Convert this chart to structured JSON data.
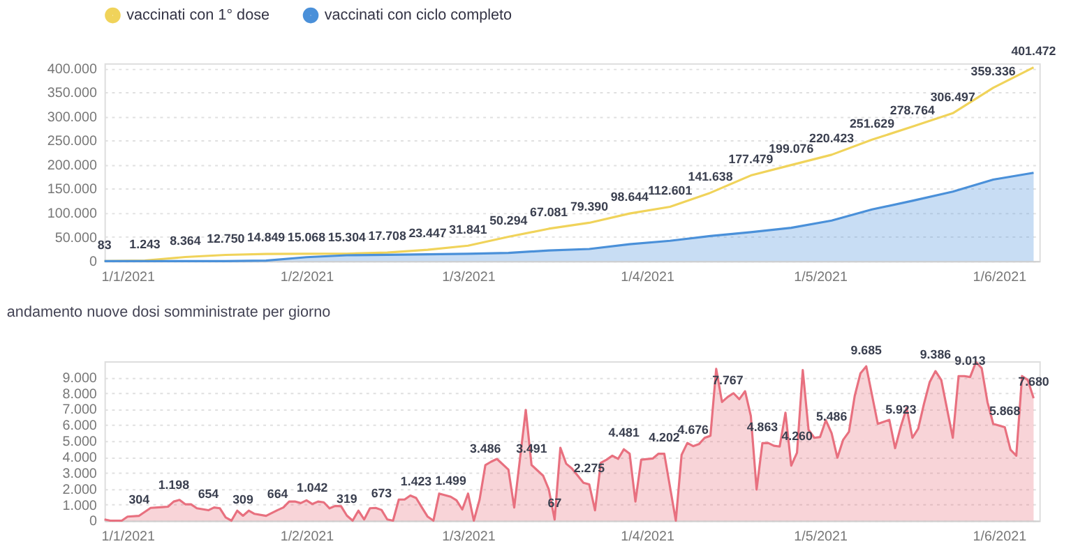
{
  "chart_data": [
    {
      "type": "line",
      "xlim": [
        "2020-12-28",
        "2021-06-08"
      ],
      "ylim": [
        0,
        410000
      ],
      "xticks": [
        {
          "value": "2021-01-01",
          "label": "1/1/2021"
        },
        {
          "value": "2021-02-01",
          "label": "1/2/2021"
        },
        {
          "value": "2021-03-01",
          "label": "1/3/2021"
        },
        {
          "value": "2021-04-01",
          "label": "1/4/2021"
        },
        {
          "value": "2021-05-01",
          "label": "1/5/2021"
        },
        {
          "value": "2021-06-01",
          "label": "1/6/2021"
        }
      ],
      "yticks": [
        0,
        {
          "value": 50000,
          "label": "50.000"
        },
        {
          "value": 100000,
          "label": "100.000"
        },
        {
          "value": 150000,
          "label": "150.000"
        },
        {
          "value": 200000,
          "label": "200.000"
        },
        {
          "value": 250000,
          "label": "250.000"
        },
        {
          "value": 300000,
          "label": "300.000"
        },
        {
          "value": 350000,
          "label": "350.000"
        },
        {
          "value": 400000,
          "label": "400.000"
        }
      ],
      "grid": "y",
      "legend": "top left",
      "marker": "none",
      "line_style": "solid",
      "x": [
        "2020-12-28",
        "2021-01-04",
        "2021-01-11",
        "2021-01-18",
        "2021-01-25",
        "2021-02-01",
        "2021-02-08",
        "2021-02-15",
        "2021-02-22",
        "2021-03-01",
        "2021-03-08",
        "2021-03-15",
        "2021-03-22",
        "2021-03-29",
        "2021-04-05",
        "2021-04-12",
        "2021-04-19",
        "2021-04-26",
        "2021-05-03",
        "2021-05-10",
        "2021-05-17",
        "2021-05-24",
        "2021-05-31",
        "2021-06-07"
      ],
      "series": [
        {
          "name": "vaccinati con 1° dose",
          "color": "#f0d35a",
          "type": "line",
          "values": [
            83,
            1243,
            8364,
            12750,
            14849,
            15068,
            15304,
            17708,
            23447,
            31841,
            50294,
            67081,
            79390,
            98644,
            112601,
            141638,
            177479,
            199076,
            220423,
            251629,
            278764,
            306497,
            359336,
            401472
          ],
          "value_labels": [
            "83",
            "1.243",
            "8.364",
            "12.750",
            "14.849",
            "15.068",
            "15.304",
            "17.708",
            "23.447",
            "31.841",
            "50.294",
            "67.081",
            "79.390",
            "98.644",
            "112.601",
            "141.638",
            "177.479",
            "199.076",
            "220.423",
            "251.629",
            "278.764",
            "306.497",
            "359.336",
            "401.472"
          ]
        },
        {
          "name": "vaccinati con ciclo completo",
          "color": "#4a90d9",
          "type": "area",
          "values": [
            0,
            0,
            0,
            0,
            1000,
            8000,
            12000,
            13000,
            14000,
            15000,
            17000,
            22000,
            25000,
            35000,
            42000,
            52000,
            60000,
            69000,
            84000,
            107000,
            125000,
            144000,
            169000,
            183000
          ]
        }
      ]
    },
    {
      "type": "area",
      "title": "andamento nuove dosi somministrate per giorno",
      "xlim": [
        "2020-12-28",
        "2021-06-08"
      ],
      "ylim": [
        0,
        10000
      ],
      "xticks": [
        {
          "value": "2021-01-01",
          "label": "1/1/2021"
        },
        {
          "value": "2021-02-01",
          "label": "1/2/2021"
        },
        {
          "value": "2021-03-01",
          "label": "1/3/2021"
        },
        {
          "value": "2021-04-01",
          "label": "1/4/2021"
        },
        {
          "value": "2021-05-01",
          "label": "1/5/2021"
        },
        {
          "value": "2021-06-01",
          "label": "1/6/2021"
        }
      ],
      "yticks": [
        0,
        {
          "value": 1000,
          "label": "1.000"
        },
        {
          "value": 2000,
          "label": "2.000"
        },
        {
          "value": 3000,
          "label": "3.000"
        },
        {
          "value": 4000,
          "label": "4.000"
        },
        {
          "value": 5000,
          "label": "5.000"
        },
        {
          "value": 6000,
          "label": "6.000"
        },
        {
          "value": 7000,
          "label": "7.000"
        },
        {
          "value": 8000,
          "label": "8.000"
        },
        {
          "value": 9000,
          "label": "9.000"
        }
      ],
      "grid": "y",
      "legend": false,
      "marker": "none",
      "line_style": "solid",
      "x": [
        "2020-12-28",
        "2020-12-29",
        "2020-12-31",
        "2021-01-01",
        "2021-01-03",
        "2021-01-05",
        "2021-01-07",
        "2021-01-08",
        "2021-01-09",
        "2021-01-10",
        "2021-01-11",
        "2021-01-12",
        "2021-01-13",
        "2021-01-15",
        "2021-01-16",
        "2021-01-17",
        "2021-01-18",
        "2021-01-19",
        "2021-01-20",
        "2021-01-21",
        "2021-01-22",
        "2021-01-23",
        "2021-01-25",
        "2021-01-27",
        "2021-01-28",
        "2021-01-29",
        "2021-01-30",
        "2021-01-31",
        "2021-02-01",
        "2021-02-02",
        "2021-02-03",
        "2021-02-04",
        "2021-02-05",
        "2021-02-06",
        "2021-02-07",
        "2021-02-08",
        "2021-02-09",
        "2021-02-10",
        "2021-02-11",
        "2021-02-12",
        "2021-02-13",
        "2021-02-14",
        "2021-02-15",
        "2021-02-16",
        "2021-02-17",
        "2021-02-18",
        "2021-02-19",
        "2021-02-20",
        "2021-02-21",
        "2021-02-22",
        "2021-02-23",
        "2021-02-24",
        "2021-02-25",
        "2021-02-26",
        "2021-02-27",
        "2021-02-28",
        "2021-03-01",
        "2021-03-02",
        "2021-03-03",
        "2021-03-04",
        "2021-03-05",
        "2021-03-06",
        "2021-03-08",
        "2021-03-09",
        "2021-03-11",
        "2021-03-12",
        "2021-03-14",
        "2021-03-15",
        "2021-03-16",
        "2021-03-17",
        "2021-03-18",
        "2021-03-19",
        "2021-03-21",
        "2021-03-22",
        "2021-03-23",
        "2021-03-24",
        "2021-03-25",
        "2021-03-26",
        "2021-03-27",
        "2021-03-28",
        "2021-03-29",
        "2021-03-30",
        "2021-03-31",
        "2021-04-02",
        "2021-04-03",
        "2021-04-04",
        "2021-04-06",
        "2021-04-07",
        "2021-04-08",
        "2021-04-09",
        "2021-04-10",
        "2021-04-11",
        "2021-04-12",
        "2021-04-13",
        "2021-04-14",
        "2021-04-15",
        "2021-04-16",
        "2021-04-17",
        "2021-04-18",
        "2021-04-19",
        "2021-04-20",
        "2021-04-21",
        "2021-04-22",
        "2021-04-23",
        "2021-04-24",
        "2021-04-25",
        "2021-04-26",
        "2021-04-27",
        "2021-04-28",
        "2021-04-29",
        "2021-04-30",
        "2021-05-01",
        "2021-05-02",
        "2021-05-03",
        "2021-05-04",
        "2021-05-05",
        "2021-05-06",
        "2021-05-07",
        "2021-05-08",
        "2021-05-09",
        "2021-05-11",
        "2021-05-13",
        "2021-05-14",
        "2021-05-15",
        "2021-05-16",
        "2021-05-17",
        "2021-05-18",
        "2021-05-19",
        "2021-05-20",
        "2021-05-21",
        "2021-05-22",
        "2021-05-24",
        "2021-05-25",
        "2021-05-26",
        "2021-05-27",
        "2021-05-28",
        "2021-05-29",
        "2021-05-30",
        "2021-05-31",
        "2021-06-02",
        "2021-06-03",
        "2021-06-04",
        "2021-06-05",
        "2021-06-06",
        "2021-06-07"
      ],
      "series": [
        {
          "color": "#e8707f",
          "values": [
            75,
            0,
            0,
            250,
            304,
            800,
            850,
            875,
            1198,
            1300,
            1025,
            1025,
            775,
            654,
            825,
            775,
            200,
            0,
            625,
            309,
            625,
            425,
            300,
            664,
            825,
            1200,
            1200,
            1100,
            1275,
            1042,
            1200,
            1150,
            775,
            925,
            900,
            319,
            0,
            625,
            75,
            775,
            800,
            673,
            75,
            0,
            1325,
            1325,
            1575,
            1423,
            825,
            250,
            0,
            1700,
            1600,
            1499,
            1275,
            700,
            1700,
            0,
            1325,
            3486,
            3700,
            3875,
            3200,
            825,
            6950,
            3491,
            2825,
            1950,
            67,
            4575,
            3575,
            3275,
            2375,
            2275,
            650,
            3625,
            3825,
            4075,
            3875,
            4481,
            4200,
            1200,
            3825,
            3900,
            4200,
            4202,
            0,
            4125,
            4875,
            4676,
            4800,
            5200,
            5325,
            9525,
            7450,
            7767,
            8000,
            7625,
            8125,
            6575,
            1950,
            4863,
            4875,
            4700,
            4650,
            6775,
            3450,
            4260,
            9450,
            5700,
            5200,
            5250,
            6300,
            5486,
            3950,
            5075,
            5575,
            7825,
            9250,
            9685,
            6075,
            6325,
            4550,
            5923,
            7075,
            5200,
            5775,
            7325,
            8700,
            9386,
            8825,
            5200,
            9075,
            9075,
            9013,
            9950,
            9575,
            7450,
            6075,
            5868,
            4450,
            4075,
            9075,
            8825,
            7680
          ],
          "value_labels": [
            null,
            null,
            null,
            null,
            "304",
            null,
            null,
            null,
            "1.198",
            null,
            null,
            null,
            null,
            "654",
            null,
            null,
            null,
            null,
            null,
            "309",
            null,
            null,
            null,
            "664",
            null,
            null,
            null,
            null,
            null,
            "1.042",
            null,
            null,
            null,
            null,
            null,
            "319",
            null,
            null,
            null,
            null,
            null,
            "673",
            null,
            null,
            null,
            null,
            null,
            "1.423",
            null,
            null,
            null,
            null,
            null,
            "1.499",
            null,
            null,
            null,
            null,
            null,
            "3.486",
            null,
            null,
            null,
            null,
            null,
            "3.491",
            null,
            null,
            "67",
            null,
            null,
            null,
            null,
            "2.275",
            null,
            null,
            null,
            null,
            null,
            "4.481",
            null,
            null,
            null,
            null,
            null,
            "4.202",
            null,
            null,
            null,
            "4.676",
            null,
            null,
            null,
            null,
            null,
            "7.767",
            null,
            null,
            null,
            null,
            null,
            "4.863",
            null,
            null,
            null,
            null,
            null,
            "4.260",
            null,
            null,
            null,
            null,
            null,
            "5.486",
            null,
            null,
            null,
            null,
            null,
            "9.685",
            null,
            null,
            null,
            "5.923",
            null,
            null,
            null,
            null,
            null,
            "9.386",
            null,
            null,
            null,
            null,
            "9.013",
            null,
            null,
            null,
            null,
            "5.868",
            null,
            null,
            null,
            null,
            "7.680"
          ]
        }
      ]
    }
  ]
}
